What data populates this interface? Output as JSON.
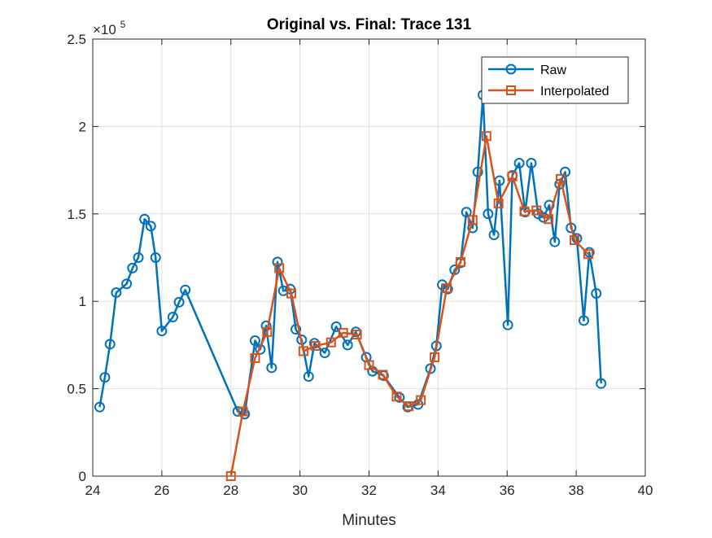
{
  "chart_data": {
    "type": "line",
    "title": "Original vs. Final: Trace 131",
    "xlabel": "Minutes",
    "ylabel": "",
    "xlim": [
      24,
      40
    ],
    "ylim": [
      0,
      250000
    ],
    "xticks": [
      24,
      26,
      28,
      30,
      32,
      34,
      36,
      38,
      40
    ],
    "yticks": [
      0,
      50000,
      100000,
      150000,
      200000,
      250000
    ],
    "xtick_labels": [
      "24",
      "26",
      "28",
      "30",
      "32",
      "34",
      "36",
      "38",
      "40"
    ],
    "ytick_labels": [
      "0",
      "0.5",
      "1",
      "1.5",
      "2",
      "2.5"
    ],
    "y_exponent_base": "×10",
    "y_exponent_power": "5",
    "grid": true,
    "legend_location": "top-right",
    "series": [
      {
        "name": "Raw",
        "color": "#0072BD",
        "marker": "circle",
        "x": [
          24.2,
          24.35,
          24.5,
          24.68,
          24.98,
          25.15,
          25.32,
          25.5,
          25.68,
          25.82,
          26.0,
          26.32,
          26.5,
          26.68,
          28.2,
          28.4,
          28.7,
          28.85,
          29.02,
          29.18,
          29.35,
          29.52,
          29.72,
          29.88,
          30.05,
          30.25,
          30.42,
          30.72,
          31.05,
          31.38,
          31.62,
          31.92,
          32.1,
          32.42,
          32.88,
          33.12,
          33.42,
          33.78,
          33.95,
          34.12,
          34.28,
          34.48,
          34.65,
          34.82,
          35.0,
          35.15,
          35.3,
          35.45,
          35.62,
          35.78,
          36.02,
          36.15,
          36.35,
          36.52,
          36.7,
          36.9,
          37.05,
          37.22,
          37.38,
          37.52,
          37.68,
          37.85,
          38.02,
          38.22,
          38.38,
          38.58,
          38.72
        ],
        "y": [
          39500,
          56500,
          75500,
          105000,
          110000,
          119000,
          125000,
          147000,
          143000,
          125000,
          83000,
          91000,
          99500,
          106500,
          37000,
          35500,
          77500,
          72500,
          86000,
          62000,
          122500,
          106000,
          107000,
          84000,
          78000,
          57000,
          76000,
          70500,
          85500,
          75000,
          82500,
          68000,
          60000,
          57500,
          45000,
          39500,
          41000,
          61500,
          74500,
          109500,
          107000,
          118000,
          122000,
          151000,
          142000,
          174000,
          218000,
          150000,
          138000,
          169000,
          86500,
          172000,
          179000,
          151000,
          179000,
          150000,
          148000,
          155000,
          134000,
          167000,
          174000,
          142000,
          136000,
          89000,
          128000,
          104500,
          53000
        ]
      },
      {
        "name": "Interpolated",
        "color": "#D95319",
        "marker": "square",
        "x": [
          28.0,
          28.35,
          28.7,
          29.05,
          29.4,
          29.75,
          30.1,
          30.45,
          30.9,
          31.25,
          31.65,
          32.0,
          32.4,
          32.8,
          33.15,
          33.5,
          33.9,
          34.25,
          34.65,
          35.0,
          35.4,
          35.75,
          36.15,
          36.5,
          36.85,
          37.2,
          37.55,
          37.95,
          38.35
        ],
        "y": [
          0,
          37000,
          67500,
          82500,
          119000,
          104500,
          71500,
          74500,
          76500,
          82000,
          81000,
          63500,
          58000,
          45500,
          40000,
          43500,
          68000,
          107500,
          122500,
          146500,
          194500,
          156000,
          171500,
          151500,
          152000,
          147000,
          170000,
          135000,
          127000
        ]
      }
    ]
  }
}
